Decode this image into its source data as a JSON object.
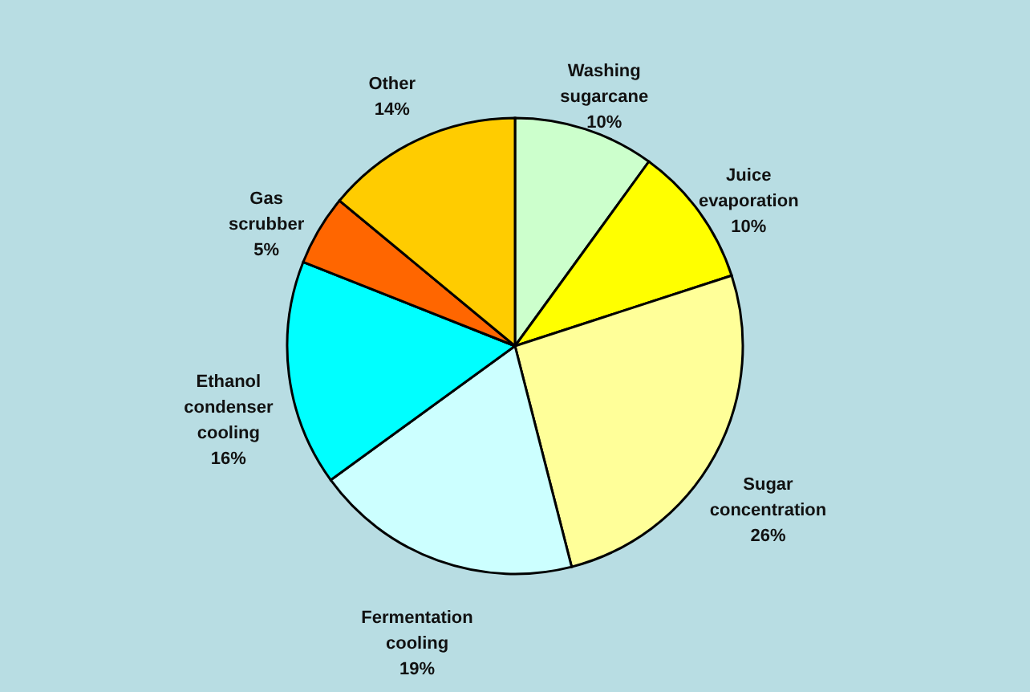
{
  "chart_data": {
    "type": "pie",
    "categories": [
      "Washing sugarcane",
      "Juice evaporation",
      "Sugar concentration",
      "Fermentation cooling",
      "Ethanol condenser cooling",
      "Gas scrubber",
      "Other"
    ],
    "values": [
      10,
      10,
      26,
      19,
      16,
      5,
      14
    ],
    "value_labels": [
      "10%",
      "10%",
      "26%",
      "19%",
      "16%",
      "5%",
      "14%"
    ],
    "colors": [
      "#ccffcc",
      "#ffff00",
      "#ffff99",
      "#ccffff",
      "#00ffff",
      "#ff6600",
      "#ffcc00"
    ]
  }
}
